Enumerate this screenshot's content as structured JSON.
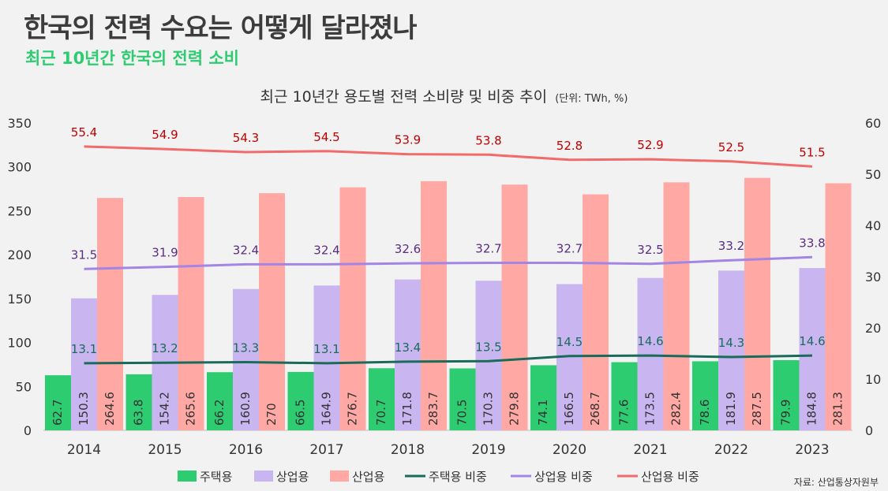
{
  "header": {
    "title": "한국의 전력 수요는 어떻게 달라졌나",
    "subtitle": "최근 10년간 한국의 전력 소비"
  },
  "source": "자료: 산업통상자원부",
  "colors": {
    "residential_bar": "#2ecc71",
    "commercial_bar": "#c9b6f0",
    "industrial_bar": "#ffa8a4",
    "residential_line": "#1a6b5a",
    "commercial_line": "#a385e6",
    "industrial_line": "#f26b6b"
  },
  "chart_data": {
    "type": "bar",
    "title": "최근 10년간 용도별 전력 소비량 및 비중 추이",
    "unit": "(단위: TWh, %)",
    "categories": [
      "2014",
      "2015",
      "2016",
      "2017",
      "2018",
      "2019",
      "2020",
      "2021",
      "2022",
      "2023"
    ],
    "ylim": [
      0,
      350
    ],
    "yticks": [
      0,
      50,
      100,
      150,
      200,
      250,
      300,
      350
    ],
    "y2lim": [
      0,
      60
    ],
    "y2ticks": [
      0,
      10,
      20,
      30,
      40,
      50,
      60
    ],
    "grid": false,
    "legend_position": "bottom",
    "series": [
      {
        "name": "주택용",
        "kind": "bar",
        "axis": "left",
        "values": [
          62.7,
          63.8,
          66.2,
          66.5,
          70.7,
          70.5,
          74.1,
          77.6,
          78.6,
          79.9
        ]
      },
      {
        "name": "상업용",
        "kind": "bar",
        "axis": "left",
        "values": [
          150.3,
          154.2,
          160.9,
          164.9,
          171.8,
          170.3,
          166.5,
          173.5,
          181.9,
          184.8
        ]
      },
      {
        "name": "산업용",
        "kind": "bar",
        "axis": "left",
        "values": [
          264.6,
          265.6,
          270,
          276.7,
          283.7,
          279.8,
          268.7,
          282.4,
          287.5,
          281.3
        ]
      },
      {
        "name": "주택용 비중",
        "kind": "line",
        "axis": "right",
        "values": [
          13.1,
          13.2,
          13.3,
          13.1,
          13.4,
          13.5,
          14.5,
          14.6,
          14.3,
          14.6
        ]
      },
      {
        "name": "상업용 비중",
        "kind": "line",
        "axis": "right",
        "values": [
          31.5,
          31.9,
          32.4,
          32.4,
          32.6,
          32.7,
          32.7,
          32.5,
          33.2,
          33.8
        ]
      },
      {
        "name": "산업용 비중",
        "kind": "line",
        "axis": "right",
        "values": [
          55.4,
          54.9,
          54.3,
          54.5,
          53.9,
          53.8,
          52.8,
          52.9,
          52.5,
          51.5
        ]
      }
    ]
  }
}
